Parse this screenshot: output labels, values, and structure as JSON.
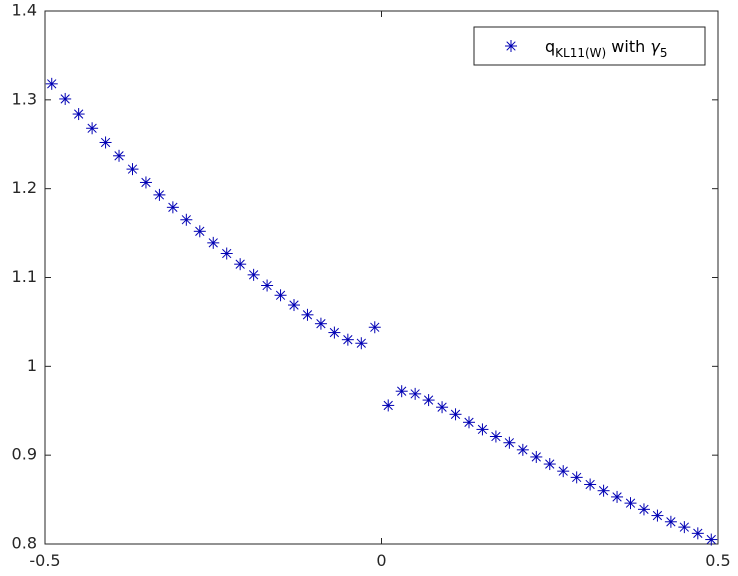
{
  "chart_data": {
    "type": "scatter",
    "xlim": [
      -0.5,
      0.5
    ],
    "ylim": [
      0.8,
      1.4
    ],
    "xticks": [
      "-0.5",
      "0",
      "0.5"
    ],
    "yticks": [
      "0.8",
      "0.9",
      "1",
      "1.1",
      "1.2",
      "1.3",
      "1.4"
    ],
    "grid": false,
    "legend_position": "top-right",
    "legend": {
      "main": "q",
      "subscript": "KL11(W)",
      "middle": " with ",
      "gamma": "γ",
      "gamma_subscript": "5"
    },
    "marker": "asterisk",
    "marker_color": "#0000b4",
    "series": [
      {
        "x": [
          -0.49,
          -0.47,
          -0.45,
          -0.43,
          -0.41,
          -0.39,
          -0.37,
          -0.35,
          -0.33,
          -0.31,
          -0.29,
          -0.27,
          -0.25,
          -0.23,
          -0.21,
          -0.19,
          -0.17,
          -0.15,
          -0.13,
          -0.11,
          -0.09,
          -0.07,
          -0.05,
          -0.03,
          -0.01,
          0.01,
          0.03,
          0.05,
          0.07,
          0.09,
          0.11,
          0.13,
          0.15,
          0.17,
          0.19,
          0.21,
          0.23,
          0.25,
          0.27,
          0.29,
          0.31,
          0.33,
          0.35,
          0.37,
          0.39,
          0.41,
          0.43,
          0.45,
          0.47,
          0.49
        ],
        "y": [
          1.318,
          1.301,
          1.284,
          1.268,
          1.252,
          1.237,
          1.222,
          1.207,
          1.193,
          1.179,
          1.165,
          1.152,
          1.139,
          1.127,
          1.115,
          1.103,
          1.091,
          1.08,
          1.069,
          1.058,
          1.048,
          1.038,
          1.03,
          1.026,
          1.044,
          0.956,
          0.972,
          0.969,
          0.962,
          0.954,
          0.946,
          0.937,
          0.929,
          0.921,
          0.914,
          0.906,
          0.898,
          0.89,
          0.882,
          0.875,
          0.867,
          0.86,
          0.853,
          0.846,
          0.839,
          0.832,
          0.825,
          0.819,
          0.812,
          0.805
        ]
      }
    ]
  }
}
